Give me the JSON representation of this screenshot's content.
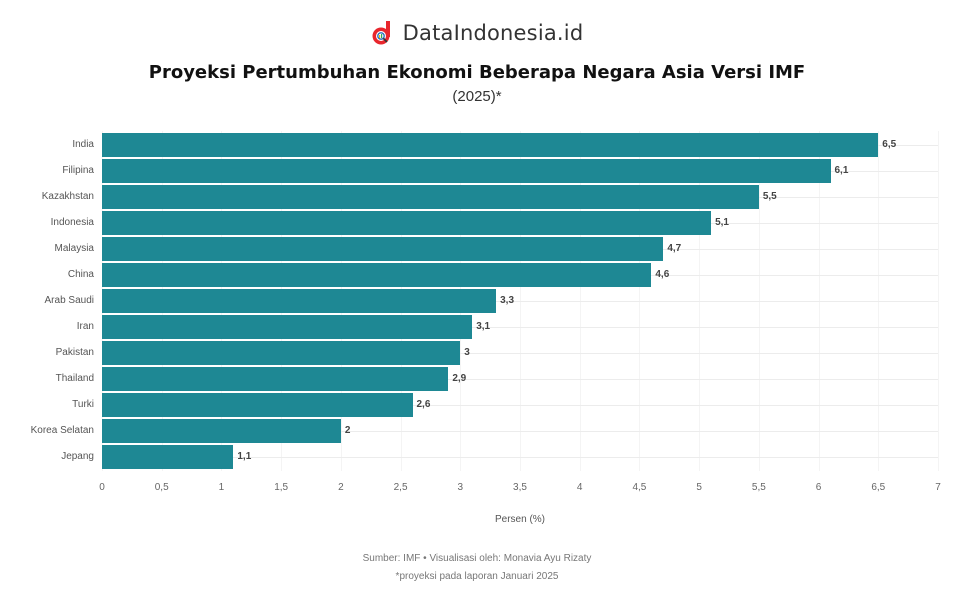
{
  "brand": {
    "name": "DataIndonesia.id",
    "logo_color": "#e8262d"
  },
  "header": {
    "title": "Proyeksi Pertumbuhan Ekonomi Beberapa Negara Asia Versi IMF",
    "subtitle": "(2025)*"
  },
  "axis": {
    "xlabel": "Persen (%)",
    "ticks": [
      "0",
      "0,5",
      "1",
      "1,5",
      "2",
      "2,5",
      "3",
      "3,5",
      "4",
      "4,5",
      "5",
      "5,5",
      "6",
      "6,5",
      "7"
    ]
  },
  "footer": {
    "source": "Sumber: IMF • Visualisasi oleh: Monavia Ayu Rizaty",
    "note": "*proyeksi pada laporan Januari 2025"
  },
  "colors": {
    "bar": "#1e8894"
  },
  "chart_data": {
    "type": "bar",
    "orientation": "horizontal",
    "title": "Proyeksi Pertumbuhan Ekonomi Beberapa Negara Asia Versi IMF",
    "subtitle": "(2025)*",
    "xlabel": "Persen (%)",
    "ylabel": "",
    "xlim": [
      0,
      7
    ],
    "grid": true,
    "legend": null,
    "categories": [
      "India",
      "Filipina",
      "Kazakhstan",
      "Indonesia",
      "Malaysia",
      "China",
      "Arab Saudi",
      "Iran",
      "Pakistan",
      "Thailand",
      "Turki",
      "Korea Selatan",
      "Jepang"
    ],
    "values": [
      6.5,
      6.1,
      5.5,
      5.1,
      4.7,
      4.6,
      3.3,
      3.1,
      3.0,
      2.9,
      2.6,
      2.0,
      1.1
    ],
    "value_labels": [
      "6,5",
      "6,1",
      "5,5",
      "5,1",
      "4,7",
      "4,6",
      "3,3",
      "3,1",
      "3",
      "2,9",
      "2,6",
      "2",
      "1,1"
    ]
  }
}
